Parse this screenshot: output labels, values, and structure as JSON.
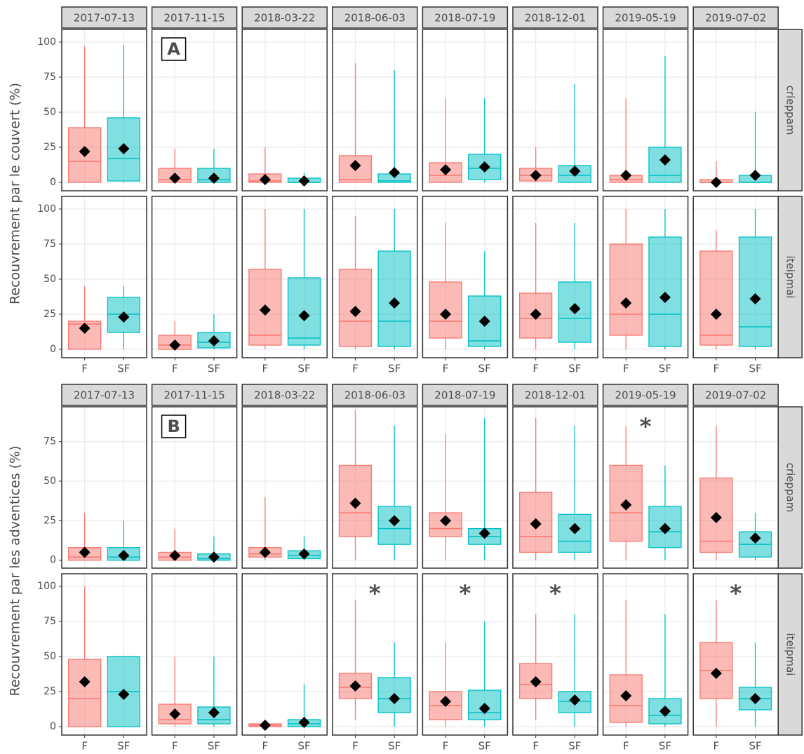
{
  "chart_data": [
    {
      "type": "boxplot",
      "panel_label": "A",
      "y_label": "Recouvrement par le couvert (%)",
      "dates": [
        "2017-07-13",
        "2017-11-15",
        "2018-03-22",
        "2018-06-03",
        "2018-07-19",
        "2018-12-01",
        "2019-05-19",
        "2019-07-02"
      ],
      "categories": [
        "F",
        "SF"
      ],
      "colors": [
        "#F8766D",
        "#00BFC4"
      ],
      "grid": true,
      "rows": [
        {
          "name": "crieppam",
          "ylim": [
            -6,
            109
          ],
          "yticks": [
            0,
            25,
            50,
            75,
            100
          ],
          "panels": [
            {
              "boxes": [
                {
                  "low": 0,
                  "q1": 0,
                  "median": 15,
                  "q3": 39,
                  "high": 97,
                  "mean": 22
                },
                {
                  "low": 0,
                  "q1": 1,
                  "median": 17,
                  "q3": 46,
                  "high": 98,
                  "mean": 24
                }
              ]
            },
            {
              "boxes": [
                {
                  "low": 0,
                  "q1": 0,
                  "median": 2,
                  "q3": 10,
                  "high": 24,
                  "mean": 3
                },
                {
                  "low": 0,
                  "q1": 0,
                  "median": 2,
                  "q3": 10,
                  "high": 24,
                  "mean": 3
                }
              ]
            },
            {
              "boxes": [
                {
                  "low": 0,
                  "q1": 0,
                  "median": 1,
                  "q3": 6,
                  "high": 25,
                  "mean": 2
                },
                {
                  "low": 0,
                  "q1": 0,
                  "median": 0,
                  "q3": 3,
                  "high": 7,
                  "mean": 1
                }
              ]
            },
            {
              "boxes": [
                {
                  "low": 0,
                  "q1": 0,
                  "median": 2,
                  "q3": 19,
                  "high": 85,
                  "mean": 12
                },
                {
                  "low": 0,
                  "q1": 0,
                  "median": 1,
                  "q3": 6,
                  "high": 80,
                  "mean": 7
                }
              ]
            },
            {
              "boxes": [
                {
                  "low": 0,
                  "q1": 0,
                  "median": 5,
                  "q3": 14,
                  "high": 60,
                  "mean": 9
                },
                {
                  "low": 0,
                  "q1": 2,
                  "median": 10,
                  "q3": 20,
                  "high": 60,
                  "mean": 11
                }
              ]
            },
            {
              "boxes": [
                {
                  "low": 0,
                  "q1": 1,
                  "median": 5,
                  "q3": 10,
                  "high": 25,
                  "mean": 5
                },
                {
                  "low": 0,
                  "q1": 0,
                  "median": 5,
                  "q3": 12,
                  "high": 70,
                  "mean": 8
                }
              ]
            },
            {
              "boxes": [
                {
                  "low": 0,
                  "q1": 0,
                  "median": 2,
                  "q3": 5,
                  "high": 60,
                  "mean": 5
                },
                {
                  "low": 0,
                  "q1": 0,
                  "median": 5,
                  "q3": 25,
                  "high": 90,
                  "mean": 16
                }
              ]
            },
            {
              "boxes": [
                {
                  "low": 0,
                  "q1": 0,
                  "median": 0,
                  "q3": 2,
                  "high": 15,
                  "mean": 0
                },
                {
                  "low": 0,
                  "q1": 0,
                  "median": 0,
                  "q3": 5,
                  "high": 50,
                  "mean": 5
                }
              ]
            }
          ]
        },
        {
          "name": "iteipmai",
          "ylim": [
            -6,
            109
          ],
          "yticks": [
            0,
            25,
            50,
            75,
            100
          ],
          "panels": [
            {
              "boxes": [
                {
                  "low": 0,
                  "q1": 0,
                  "median": 18,
                  "q3": 20,
                  "high": 45,
                  "mean": 15
                },
                {
                  "low": 0,
                  "q1": 12,
                  "median": 25,
                  "q3": 37,
                  "high": 45,
                  "mean": 23
                }
              ]
            },
            {
              "boxes": [
                {
                  "low": 0,
                  "q1": 0,
                  "median": 3,
                  "q3": 10,
                  "high": 20,
                  "mean": 3
                },
                {
                  "low": 0,
                  "q1": 1,
                  "median": 5,
                  "q3": 12,
                  "high": 25,
                  "mean": 6
                }
              ]
            },
            {
              "boxes": [
                {
                  "low": 0,
                  "q1": 3,
                  "median": 10,
                  "q3": 57,
                  "high": 100,
                  "mean": 28
                },
                {
                  "low": 0,
                  "q1": 3,
                  "median": 8,
                  "q3": 51,
                  "high": 100,
                  "mean": 24
                }
              ]
            },
            {
              "boxes": [
                {
                  "low": 0,
                  "q1": 2,
                  "median": 20,
                  "q3": 57,
                  "high": 95,
                  "mean": 27
                },
                {
                  "low": 0,
                  "q1": 2,
                  "median": 20,
                  "q3": 70,
                  "high": 100,
                  "mean": 33
                }
              ]
            },
            {
              "boxes": [
                {
                  "low": 0,
                  "q1": 8,
                  "median": 20,
                  "q3": 48,
                  "high": 90,
                  "mean": 25
                },
                {
                  "low": 0,
                  "q1": 2,
                  "median": 6,
                  "q3": 38,
                  "high": 70,
                  "mean": 20
                }
              ]
            },
            {
              "boxes": [
                {
                  "low": 0,
                  "q1": 8,
                  "median": 22,
                  "q3": 40,
                  "high": 90,
                  "mean": 25
                },
                {
                  "low": 0,
                  "q1": 5,
                  "median": 22,
                  "q3": 48,
                  "high": 90,
                  "mean": 29
                }
              ]
            },
            {
              "boxes": [
                {
                  "low": 0,
                  "q1": 10,
                  "median": 25,
                  "q3": 75,
                  "high": 100,
                  "mean": 33
                },
                {
                  "low": 0,
                  "q1": 2,
                  "median": 25,
                  "q3": 80,
                  "high": 100,
                  "mean": 37
                }
              ]
            },
            {
              "boxes": [
                {
                  "low": 0,
                  "q1": 3,
                  "median": 10,
                  "q3": 70,
                  "high": 85,
                  "mean": 25
                },
                {
                  "low": 0,
                  "q1": 2,
                  "median": 16,
                  "q3": 80,
                  "high": 100,
                  "mean": 36
                }
              ]
            }
          ]
        }
      ]
    },
    {
      "type": "boxplot",
      "panel_label": "B",
      "y_label": "Recouvrement par les adventices (%)",
      "dates": [
        "2017-07-13",
        "2017-11-15",
        "2018-03-22",
        "2018-06-03",
        "2018-07-19",
        "2018-12-01",
        "2019-05-19",
        "2019-07-02"
      ],
      "categories": [
        "F",
        "SF"
      ],
      "colors": [
        "#F8766D",
        "#00BFC4"
      ],
      "grid": true,
      "rows": [
        {
          "name": "crieppam",
          "ylim": [
            -5,
            97
          ],
          "yticks": [
            0,
            25,
            50,
            75
          ],
          "panels": [
            {
              "boxes": [
                {
                  "low": 0,
                  "q1": 0,
                  "median": 2,
                  "q3": 8,
                  "high": 30,
                  "mean": 5
                },
                {
                  "low": 0,
                  "q1": 0,
                  "median": 2,
                  "q3": 8,
                  "high": 25,
                  "mean": 3
                }
              ]
            },
            {
              "boxes": [
                {
                  "low": 0,
                  "q1": 0,
                  "median": 2,
                  "q3": 5,
                  "high": 20,
                  "mean": 3
                },
                {
                  "low": 0,
                  "q1": 0,
                  "median": 1,
                  "q3": 4,
                  "high": 15,
                  "mean": 2
                }
              ]
            },
            {
              "boxes": [
                {
                  "low": 0,
                  "q1": 2,
                  "median": 4,
                  "q3": 8,
                  "high": 40,
                  "mean": 5
                },
                {
                  "low": 0,
                  "q1": 1,
                  "median": 3,
                  "q3": 6,
                  "high": 15,
                  "mean": 4
                }
              ]
            },
            {
              "boxes": [
                {
                  "low": 0,
                  "q1": 15,
                  "median": 30,
                  "q3": 60,
                  "high": 95,
                  "mean": 36
                },
                {
                  "low": 0,
                  "q1": 10,
                  "median": 20,
                  "q3": 34,
                  "high": 85,
                  "mean": 25
                }
              ]
            },
            {
              "boxes": [
                {
                  "low": 0,
                  "q1": 15,
                  "median": 20,
                  "q3": 30,
                  "high": 80,
                  "mean": 25
                },
                {
                  "low": 0,
                  "q1": 10,
                  "median": 15,
                  "q3": 20,
                  "high": 90,
                  "mean": 17
                }
              ]
            },
            {
              "boxes": [
                {
                  "low": 0,
                  "q1": 5,
                  "median": 15,
                  "q3": 43,
                  "high": 90,
                  "mean": 23
                },
                {
                  "low": 0,
                  "q1": 5,
                  "median": 12,
                  "q3": 29,
                  "high": 85,
                  "mean": 20
                }
              ]
            },
            {
              "boxes": [
                {
                  "low": 0,
                  "q1": 12,
                  "median": 30,
                  "q3": 60,
                  "high": 85,
                  "mean": 35
                },
                {
                  "low": 0,
                  "q1": 8,
                  "median": 18,
                  "q3": 34,
                  "high": 60,
                  "mean": 20
                }
              ],
              "note": "*"
            },
            {
              "boxes": [
                {
                  "low": 0,
                  "q1": 5,
                  "median": 12,
                  "q3": 52,
                  "high": 85,
                  "mean": 27
                },
                {
                  "low": 0,
                  "q1": 2,
                  "median": 10,
                  "q3": 18,
                  "high": 30,
                  "mean": 14
                }
              ]
            }
          ]
        },
        {
          "name": "iteipmai",
          "ylim": [
            -6,
            109
          ],
          "yticks": [
            0,
            25,
            50,
            75,
            100
          ],
          "panels": [
            {
              "boxes": [
                {
                  "low": 0,
                  "q1": 0,
                  "median": 20,
                  "q3": 48,
                  "high": 100,
                  "mean": 32
                },
                {
                  "low": 0,
                  "q1": 0,
                  "median": 25,
                  "q3": 50,
                  "high": 50,
                  "mean": 23
                }
              ]
            },
            {
              "boxes": [
                {
                  "low": 0,
                  "q1": 2,
                  "median": 5,
                  "q3": 16,
                  "high": 50,
                  "mean": 9
                },
                {
                  "low": 0,
                  "q1": 2,
                  "median": 5,
                  "q3": 14,
                  "high": 50,
                  "mean": 10
                }
              ]
            },
            {
              "boxes": [
                {
                  "low": 0,
                  "q1": 0,
                  "median": 1,
                  "q3": 2,
                  "high": 5,
                  "mean": 1
                },
                {
                  "low": 0,
                  "q1": 0,
                  "median": 2,
                  "q3": 5,
                  "high": 30,
                  "mean": 3
                }
              ]
            },
            {
              "boxes": [
                {
                  "low": 5,
                  "q1": 20,
                  "median": 28,
                  "q3": 38,
                  "high": 90,
                  "mean": 29
                },
                {
                  "low": 0,
                  "q1": 10,
                  "median": 20,
                  "q3": 35,
                  "high": 60,
                  "mean": 20
                }
              ],
              "note": "*"
            },
            {
              "boxes": [
                {
                  "low": 0,
                  "q1": 5,
                  "median": 15,
                  "q3": 25,
                  "high": 60,
                  "mean": 18
                },
                {
                  "low": 0,
                  "q1": 5,
                  "median": 10,
                  "q3": 26,
                  "high": 75,
                  "mean": 13
                }
              ],
              "note": "*"
            },
            {
              "boxes": [
                {
                  "low": 5,
                  "q1": 20,
                  "median": 30,
                  "q3": 45,
                  "high": 80,
                  "mean": 32
                },
                {
                  "low": 0,
                  "q1": 10,
                  "median": 18,
                  "q3": 25,
                  "high": 80,
                  "mean": 19
                }
              ],
              "note": "*"
            },
            {
              "boxes": [
                {
                  "low": 0,
                  "q1": 3,
                  "median": 15,
                  "q3": 37,
                  "high": 90,
                  "mean": 22
                },
                {
                  "low": 0,
                  "q1": 2,
                  "median": 8,
                  "q3": 20,
                  "high": 80,
                  "mean": 11
                }
              ]
            },
            {
              "boxes": [
                {
                  "low": 0,
                  "q1": 20,
                  "median": 40,
                  "q3": 60,
                  "high": 90,
                  "mean": 38
                },
                {
                  "low": 0,
                  "q1": 12,
                  "median": 20,
                  "q3": 28,
                  "high": 60,
                  "mean": 20
                }
              ],
              "note": "*"
            }
          ]
        }
      ]
    }
  ]
}
